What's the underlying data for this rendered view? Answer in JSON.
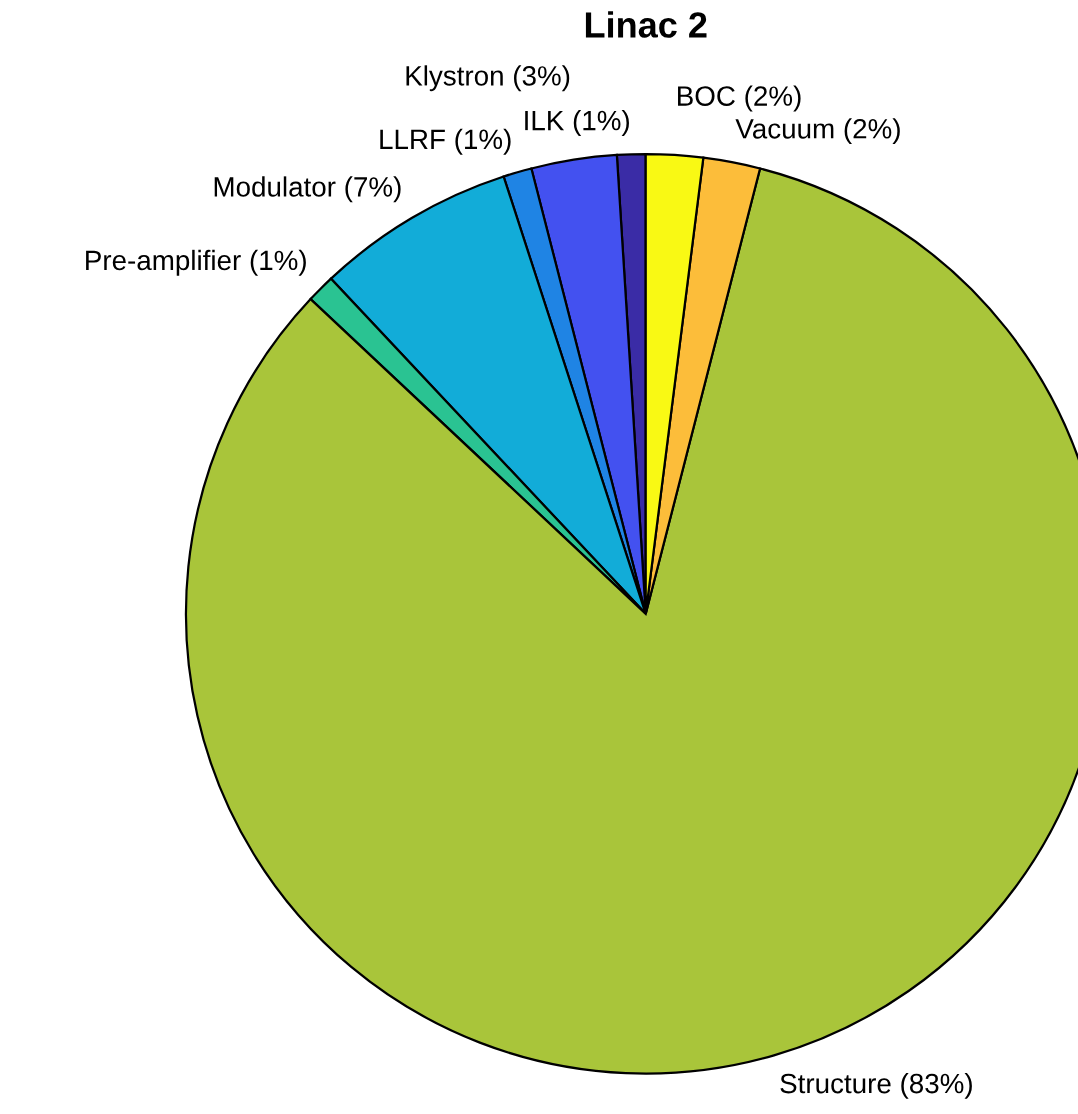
{
  "chart_data": {
    "type": "pie",
    "title": "Linac 2",
    "categories": [
      "ILK (1%)",
      "Klystron (3%)",
      "LLRF (1%)",
      "Modulator (7%)",
      "Pre-amplifier (1%)",
      "Structure (83%)",
      "Vacuum (2%)",
      "BOC (2%)"
    ],
    "values": [
      1,
      3,
      1,
      7,
      1,
      83,
      2,
      2
    ],
    "colors": [
      "#3a2ca6",
      "#4351f0",
      "#1f84e4",
      "#12acd8",
      "#2ac392",
      "#a9c53a",
      "#fcbd3a",
      "#f9f914"
    ],
    "legend": false
  }
}
